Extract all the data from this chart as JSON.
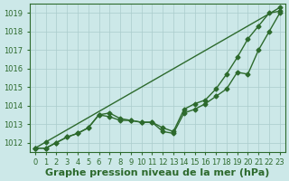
{
  "x": [
    0,
    1,
    2,
    3,
    4,
    5,
    6,
    7,
    8,
    9,
    10,
    11,
    12,
    13,
    14,
    15,
    16,
    17,
    18,
    19,
    20,
    21,
    22,
    23
  ],
  "line1_straight": [
    1011.7,
    1012.03,
    1012.36,
    1012.69,
    1013.02,
    1013.35,
    1013.68,
    1014.01,
    1014.34,
    1014.67,
    1015.0,
    1015.33,
    1015.66,
    1015.99,
    1016.32,
    1016.65,
    1016.98,
    1017.31,
    1017.64,
    1017.97,
    1018.3,
    1018.63,
    1018.96,
    1019.3
  ],
  "line2": [
    1011.7,
    1011.7,
    1012.0,
    1012.3,
    1012.5,
    1012.8,
    1013.5,
    1013.6,
    1013.3,
    1013.2,
    1013.1,
    1013.1,
    1012.8,
    1012.6,
    1013.8,
    1014.1,
    1014.3,
    1014.9,
    1015.7,
    1016.6,
    1017.6,
    1018.3,
    1019.0,
    1019.1
  ],
  "line3": [
    1011.7,
    1011.7,
    1012.0,
    1012.3,
    1012.5,
    1012.8,
    1013.5,
    1013.4,
    1013.2,
    1013.2,
    1013.1,
    1013.1,
    1012.6,
    1012.5,
    1013.6,
    1013.8,
    1014.1,
    1014.5,
    1014.9,
    1015.8,
    1015.7,
    1017.0,
    1018.0,
    1019.0
  ],
  "ylim": [
    1011.5,
    1019.5
  ],
  "xlim": [
    -0.5,
    23.5
  ],
  "yticks": [
    1012,
    1013,
    1014,
    1015,
    1016,
    1017,
    1018,
    1019
  ],
  "xticks": [
    0,
    1,
    2,
    3,
    4,
    5,
    6,
    7,
    8,
    9,
    10,
    11,
    12,
    13,
    14,
    15,
    16,
    17,
    18,
    19,
    20,
    21,
    22,
    23
  ],
  "xlabel": "Graphe pression niveau de la mer (hPa)",
  "line_color": "#2d6a2d",
  "bg_color": "#cce8e8",
  "grid_color": "#aacccc",
  "marker": "D",
  "marker_size": 2.5,
  "line_width": 1.0,
  "xlabel_fontsize": 8.0,
  "tick_fontsize": 6.0
}
